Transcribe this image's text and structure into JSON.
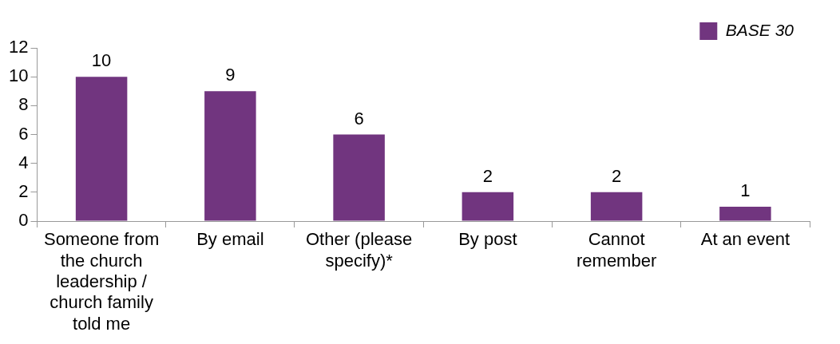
{
  "chart_data": {
    "type": "bar",
    "categories": [
      "Someone from the church leadership / church family told me",
      "By email",
      "Other (please specify)*",
      "By post",
      "Cannot remember",
      "At an event"
    ],
    "series": [
      {
        "name": "BASE 30",
        "color": "#71357f",
        "values": [
          10,
          9,
          6,
          2,
          2,
          1
        ]
      }
    ],
    "ylim": [
      0,
      12
    ],
    "yticks": [
      0,
      2,
      4,
      6,
      8,
      10,
      12
    ],
    "grid": false,
    "legend": "top right",
    "data_labels": true
  }
}
